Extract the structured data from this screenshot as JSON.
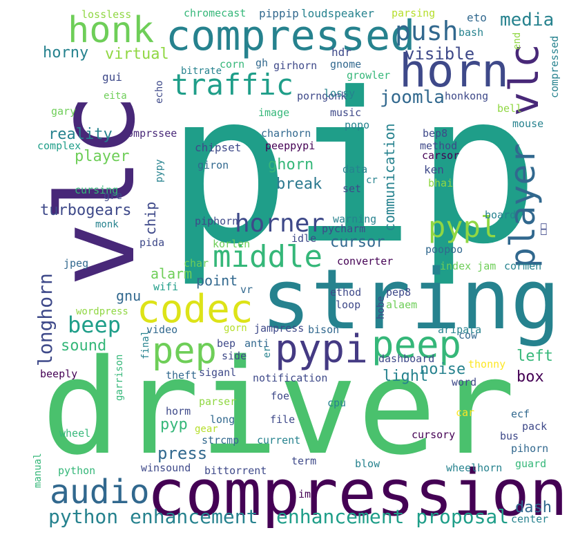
{
  "palette": {
    "dark_purple": "#440154",
    "indigo": "#482878",
    "blue": "#3e4989",
    "slate": "#31688e",
    "teal_blue": "#26828e",
    "teal": "#1f9e89",
    "green_teal": "#35b779",
    "green": "#6ece58",
    "lime": "#b5de2b",
    "yellow": "#fde725"
  },
  "words": [
    {
      "text": "pip",
      "color": "#1f9e89",
      "vertical": false
    },
    {
      "text": "driver",
      "color": "#4ac16d",
      "vertical": false
    },
    {
      "text": "vlc",
      "color": "#482878",
      "vertical": true
    },
    {
      "text": "string",
      "color": "#26828e",
      "vertical": false
    },
    {
      "text": "compression",
      "color": "#440154",
      "vertical": false
    },
    {
      "text": "compressed",
      "color": "#26828e",
      "vertical": false
    },
    {
      "text": "horn",
      "color": "#3e4989",
      "vertical": false
    },
    {
      "text": "honk",
      "color": "#6ece58",
      "vertical": false
    },
    {
      "text": "vlc",
      "color": "#482878",
      "vertical": true
    },
    {
      "text": "player",
      "color": "#31688e",
      "vertical": true
    },
    {
      "text": "traffic",
      "color": "#1f9e89",
      "vertical": false
    },
    {
      "text": "push",
      "color": "#31688e",
      "vertical": false
    },
    {
      "text": "media",
      "color": "#26828e",
      "vertical": false
    },
    {
      "text": "codec",
      "color": "#dde318",
      "vertical": false
    },
    {
      "text": "pypi",
      "color": "#443a83",
      "vertical": false
    },
    {
      "text": "peep",
      "color": "#35b779",
      "vertical": false
    },
    {
      "text": "pep",
      "color": "#6ece58",
      "vertical": false
    },
    {
      "text": "middle",
      "color": "#35b779",
      "vertical": false
    },
    {
      "text": "horner",
      "color": "#3e4989",
      "vertical": false
    },
    {
      "text": "pypl",
      "color": "#90d743",
      "vertical": false
    },
    {
      "text": "audio",
      "color": "#31688e",
      "vertical": false
    },
    {
      "text": "beep",
      "color": "#1f9e89",
      "vertical": false
    },
    {
      "text": "longhorn",
      "color": "#3e4989",
      "vertical": true
    },
    {
      "text": "python enhancement",
      "color": "#26828e",
      "vertical": false
    },
    {
      "text": "enhancement proposal",
      "color": "#1f9e89",
      "vertical": false
    },
    {
      "text": "horny",
      "color": "#26828e",
      "vertical": false
    },
    {
      "text": "virtual",
      "color": "#90d743",
      "vertical": false
    },
    {
      "text": "visible",
      "color": "#3e4989",
      "vertical": false
    },
    {
      "text": "joomla",
      "color": "#31688e",
      "vertical": false
    },
    {
      "text": "reality",
      "color": "#26828e",
      "vertical": false
    },
    {
      "text": "player",
      "color": "#6ece58",
      "vertical": false
    },
    {
      "text": "ghorn",
      "color": "#35b779",
      "vertical": false
    },
    {
      "text": "break",
      "color": "#2a788e",
      "vertical": false
    },
    {
      "text": "communication",
      "color": "#26828e",
      "vertical": true
    },
    {
      "text": "turbogears",
      "color": "#3e4989",
      "vertical": false
    },
    {
      "text": "chip",
      "color": "#3e4989",
      "vertical": true
    },
    {
      "text": "cursor",
      "color": "#31688e",
      "vertical": false
    },
    {
      "text": "point",
      "color": "#31688e",
      "vertical": false
    },
    {
      "text": "alarm",
      "color": "#6ece58",
      "vertical": false
    },
    {
      "text": "sound",
      "color": "#35b779",
      "vertical": false
    },
    {
      "text": "gnu",
      "color": "#31688e",
      "vertical": false
    },
    {
      "text": "pyp",
      "color": "#35b779",
      "vertical": false
    },
    {
      "text": "press",
      "color": "#31688e",
      "vertical": false
    },
    {
      "text": "light",
      "color": "#26828e",
      "vertical": false
    },
    {
      "text": "noise",
      "color": "#26828e",
      "vertical": false
    },
    {
      "text": "left",
      "color": "#35b779",
      "vertical": false
    },
    {
      "text": "box",
      "color": "#440154",
      "vertical": false
    },
    {
      "text": "dash",
      "color": "#31688e",
      "vertical": false
    },
    {
      "text": "lossless",
      "color": "#90d743",
      "vertical": false
    },
    {
      "text": "chromecast",
      "color": "#35b779",
      "vertical": false
    },
    {
      "text": "pippip",
      "color": "#31688e",
      "vertical": false
    },
    {
      "text": "loudspeaker",
      "color": "#26828e",
      "vertical": false
    },
    {
      "text": "parsing",
      "color": "#b5de2b",
      "vertical": false
    },
    {
      "text": "eto",
      "color": "#31688e",
      "vertical": false
    },
    {
      "text": "bash",
      "color": "#26828e",
      "vertical": false
    },
    {
      "text": "end",
      "color": "#90d743",
      "vertical": true
    },
    {
      "text": "compressed",
      "color": "#26828e",
      "vertical": true
    },
    {
      "text": "hdr",
      "color": "#3e4989",
      "vertical": false
    },
    {
      "text": "gh",
      "color": "#31688e",
      "vertical": false
    },
    {
      "text": "corn",
      "color": "#35b779",
      "vertical": false
    },
    {
      "text": "gnome",
      "color": "#31688e",
      "vertical": false
    },
    {
      "text": "girhorn",
      "color": "#3e4989",
      "vertical": false
    },
    {
      "text": "growler",
      "color": "#35b779",
      "vertical": false
    },
    {
      "text": "bitrate",
      "color": "#26828e",
      "vertical": false
    },
    {
      "text": "gui",
      "color": "#3e4989",
      "vertical": false
    },
    {
      "text": "eita",
      "color": "#6ece58",
      "vertical": false
    },
    {
      "text": "porngonk",
      "color": "#3e4989",
      "vertical": false
    },
    {
      "text": "lossy",
      "color": "#26828e",
      "vertical": false
    },
    {
      "text": "honkong",
      "color": "#3e4989",
      "vertical": false
    },
    {
      "text": "echo",
      "color": "#3e4989",
      "vertical": true
    },
    {
      "text": "gary",
      "color": "#6ece58",
      "vertical": false
    },
    {
      "text": "image",
      "color": "#35b779",
      "vertical": false
    },
    {
      "text": "music",
      "color": "#3e4989",
      "vertical": false
    },
    {
      "text": "popo",
      "color": "#26828e",
      "vertical": false
    },
    {
      "text": "bell",
      "color": "#90d743",
      "vertical": false
    },
    {
      "text": "mouse",
      "color": "#26828e",
      "vertical": false
    },
    {
      "text": "complex",
      "color": "#1f9e89",
      "vertical": false
    },
    {
      "text": "comprssee",
      "color": "#482878",
      "vertical": false
    },
    {
      "text": "charhorn",
      "color": "#31688e",
      "vertical": false
    },
    {
      "text": "bep8",
      "color": "#3e4989",
      "vertical": false
    },
    {
      "text": "method",
      "color": "#3e4989",
      "vertical": false
    },
    {
      "text": "carsor",
      "color": "#440154",
      "vertical": false
    },
    {
      "text": "peeppypi",
      "color": "#440154",
      "vertical": false
    },
    {
      "text": "chipset",
      "color": "#3e4989",
      "vertical": false
    },
    {
      "text": "giron",
      "color": "#31688e",
      "vertical": false
    },
    {
      "text": "ken",
      "color": "#3e4989",
      "vertical": false
    },
    {
      "text": "data",
      "color": "#26828e",
      "vertical": false
    },
    {
      "text": "cr",
      "color": "#26828e",
      "vertical": false
    },
    {
      "text": "bhai",
      "color": "#90d743",
      "vertical": false
    },
    {
      "text": "set",
      "color": "#3e4989",
      "vertical": false
    },
    {
      "text": "cursing",
      "color": "#35b779",
      "vertical": false
    },
    {
      "text": "gre",
      "color": "#3e4989",
      "vertical": false
    },
    {
      "text": "pypy",
      "color": "#26828e",
      "vertical": true
    },
    {
      "text": "monk",
      "color": "#26828e",
      "vertical": false
    },
    {
      "text": "piphorn",
      "color": "#3e4989",
      "vertical": false
    },
    {
      "text": "warning",
      "color": "#26828e",
      "vertical": false
    },
    {
      "text": "pycharm",
      "color": "#3e4989",
      "vertical": false
    },
    {
      "text": "board",
      "color": "#26828e",
      "vertical": false
    },
    {
      "text": "pida",
      "color": "#3e4989",
      "vertical": false
    },
    {
      "text": "korlen",
      "color": "#6ece58",
      "vertical": false
    },
    {
      "text": "idle",
      "color": "#3e4989",
      "vertical": false
    },
    {
      "text": "poopoo",
      "color": "#31688e",
      "vertical": false
    },
    {
      "text": "□□",
      "color": "#3e4989",
      "vertical": true
    },
    {
      "text": "jpeg",
      "color": "#31688e",
      "vertical": false
    },
    {
      "text": "char",
      "color": "#6ece58",
      "vertical": false
    },
    {
      "text": "converter",
      "color": "#440154",
      "vertical": false
    },
    {
      "text": "index jam",
      "color": "#6ece58",
      "vertical": false
    },
    {
      "text": "cormen",
      "color": "#26828e",
      "vertical": false
    },
    {
      "text": "wifi",
      "color": "#1f9e89",
      "vertical": false
    },
    {
      "text": "vr",
      "color": "#31688e",
      "vertical": false
    },
    {
      "text": "ethod",
      "color": "#3e4989",
      "vertical": false
    },
    {
      "text": "pep8",
      "color": "#3e4989",
      "vertical": false
    },
    {
      "text": "loop",
      "color": "#3e4989",
      "vertical": false
    },
    {
      "text": "alaem",
      "color": "#6ece58",
      "vertical": false
    },
    {
      "text": "hobe",
      "color": "#3e4989",
      "vertical": true
    },
    {
      "text": "wordpress",
      "color": "#90d743",
      "vertical": false
    },
    {
      "text": "video",
      "color": "#31688e",
      "vertical": false
    },
    {
      "text": "gorn",
      "color": "#b5de2b",
      "vertical": false
    },
    {
      "text": "jampress",
      "color": "#3e4989",
      "vertical": false
    },
    {
      "text": "bison",
      "color": "#31688e",
      "vertical": false
    },
    {
      "text": "aripata",
      "color": "#26828e",
      "vertical": false
    },
    {
      "text": "bep",
      "color": "#3e4989",
      "vertical": false
    },
    {
      "text": "anti",
      "color": "#31688e",
      "vertical": false
    },
    {
      "text": "side",
      "color": "#3e4989",
      "vertical": false
    },
    {
      "text": "er",
      "color": "#26828e",
      "vertical": true
    },
    {
      "text": "dashboard",
      "color": "#3e4989",
      "vertical": false
    },
    {
      "text": "cow",
      "color": "#31688e",
      "vertical": false
    },
    {
      "text": "thonny",
      "color": "#fde725",
      "vertical": false
    },
    {
      "text": "final",
      "color": "#26828e",
      "vertical": true
    },
    {
      "text": "theft",
      "color": "#31688e",
      "vertical": false
    },
    {
      "text": "siganl",
      "color": "#3e4989",
      "vertical": false
    },
    {
      "text": "beeply",
      "color": "#440154",
      "vertical": false
    },
    {
      "text": "notification",
      "color": "#3e4989",
      "vertical": false
    },
    {
      "text": "word",
      "color": "#3e4989",
      "vertical": false
    },
    {
      "text": "parser",
      "color": "#90d743",
      "vertical": false
    },
    {
      "text": "foe",
      "color": "#3e4989",
      "vertical": false
    },
    {
      "text": "cpu",
      "color": "#26828e",
      "vertical": false
    },
    {
      "text": "car",
      "color": "#fde725",
      "vertical": false
    },
    {
      "text": "ecf",
      "color": "#31688e",
      "vertical": false
    },
    {
      "text": "garrison",
      "color": "#35b779",
      "vertical": true
    },
    {
      "text": "horm",
      "color": "#3e4989",
      "vertical": false
    },
    {
      "text": "long",
      "color": "#31688e",
      "vertical": false
    },
    {
      "text": "file",
      "color": "#3e4989",
      "vertical": false
    },
    {
      "text": "gear",
      "color": "#b5de2b",
      "vertical": false
    },
    {
      "text": "pack",
      "color": "#3e4989",
      "vertical": false
    },
    {
      "text": "wheel",
      "color": "#35b779",
      "vertical": false
    },
    {
      "text": "strcmp",
      "color": "#31688e",
      "vertical": false
    },
    {
      "text": "current",
      "color": "#26828e",
      "vertical": false
    },
    {
      "text": "cursory",
      "color": "#440154",
      "vertical": false
    },
    {
      "text": "bus",
      "color": "#3e4989",
      "vertical": false
    },
    {
      "text": "pihorn",
      "color": "#31688e",
      "vertical": false
    },
    {
      "text": "term",
      "color": "#3e4989",
      "vertical": false
    },
    {
      "text": "guard",
      "color": "#35b779",
      "vertical": false
    },
    {
      "text": "python",
      "color": "#35b779",
      "vertical": false
    },
    {
      "text": "winsound",
      "color": "#3e4989",
      "vertical": false
    },
    {
      "text": "bittorrent",
      "color": "#3e4989",
      "vertical": false
    },
    {
      "text": "blow",
      "color": "#26828e",
      "vertical": false
    },
    {
      "text": "wheelhorn",
      "color": "#26828e",
      "vertical": false
    },
    {
      "text": "manual",
      "color": "#35b779",
      "vertical": true
    },
    {
      "text": "img",
      "color": "#440154",
      "vertical": false
    },
    {
      "text": "center",
      "color": "#26828e",
      "vertical": false
    }
  ]
}
